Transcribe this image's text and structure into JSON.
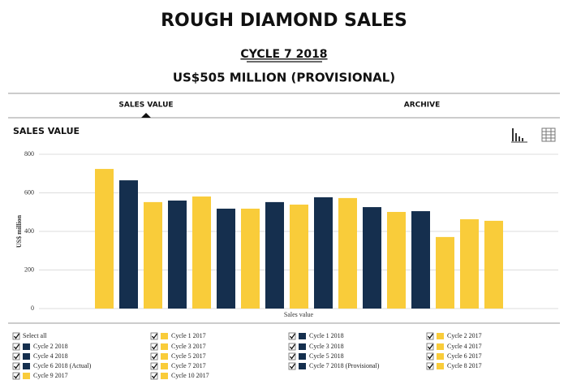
{
  "header": {
    "title": "ROUGH DIAMOND SALES",
    "cycle": "CYCLE 7 2018",
    "amount": "US$505 MILLION (PROVISIONAL)"
  },
  "tabs": [
    "SALES VALUE",
    "ARCHIVE"
  ],
  "section_title": "SALES VALUE",
  "legend": {
    "select_all": "Select all"
  },
  "chart_data": {
    "type": "bar",
    "ylabel": "US$ million",
    "xlabel": "Sales value",
    "ylim": [
      0,
      800
    ],
    "yticks": [
      0,
      200,
      400,
      600,
      800
    ],
    "grid": true,
    "categories": [
      "Sales value"
    ],
    "series": [
      {
        "name": "Cycle 1 2017",
        "color": "#f9cc3a",
        "values": [
          724
        ]
      },
      {
        "name": "Cycle 1 2018",
        "color": "#152f4e",
        "values": [
          665
        ]
      },
      {
        "name": "Cycle 2 2017",
        "color": "#f9cc3a",
        "values": [
          552
        ]
      },
      {
        "name": "Cycle 2 2018",
        "color": "#152f4e",
        "values": [
          560
        ]
      },
      {
        "name": "Cycle 3 2017",
        "color": "#f9cc3a",
        "values": [
          581
        ]
      },
      {
        "name": "Cycle 3 2018",
        "color": "#152f4e",
        "values": [
          518
        ]
      },
      {
        "name": "Cycle 4 2017",
        "color": "#f9cc3a",
        "values": [
          518
        ]
      },
      {
        "name": "Cycle 4 2018",
        "color": "#152f4e",
        "values": [
          552
        ]
      },
      {
        "name": "Cycle 5 2017",
        "color": "#f9cc3a",
        "values": [
          539
        ]
      },
      {
        "name": "Cycle 5 2018",
        "color": "#152f4e",
        "values": [
          577
        ]
      },
      {
        "name": "Cycle 6 2017",
        "color": "#f9cc3a",
        "values": [
          573
        ]
      },
      {
        "name": "Cycle 6 2018 (Actual)",
        "color": "#152f4e",
        "values": [
          526
        ]
      },
      {
        "name": "Cycle 7 2017",
        "color": "#f9cc3a",
        "values": [
          501
        ]
      },
      {
        "name": "Cycle 7 2018 (Provisional)",
        "color": "#152f4e",
        "values": [
          505
        ]
      },
      {
        "name": "Cycle 8 2017",
        "color": "#f9cc3a",
        "values": [
          371
        ]
      },
      {
        "name": "Cycle 9 2017",
        "color": "#f9cc3a",
        "values": [
          463
        ]
      },
      {
        "name": "Cycle 10 2017",
        "color": "#f9cc3a",
        "values": [
          455
        ]
      }
    ]
  }
}
